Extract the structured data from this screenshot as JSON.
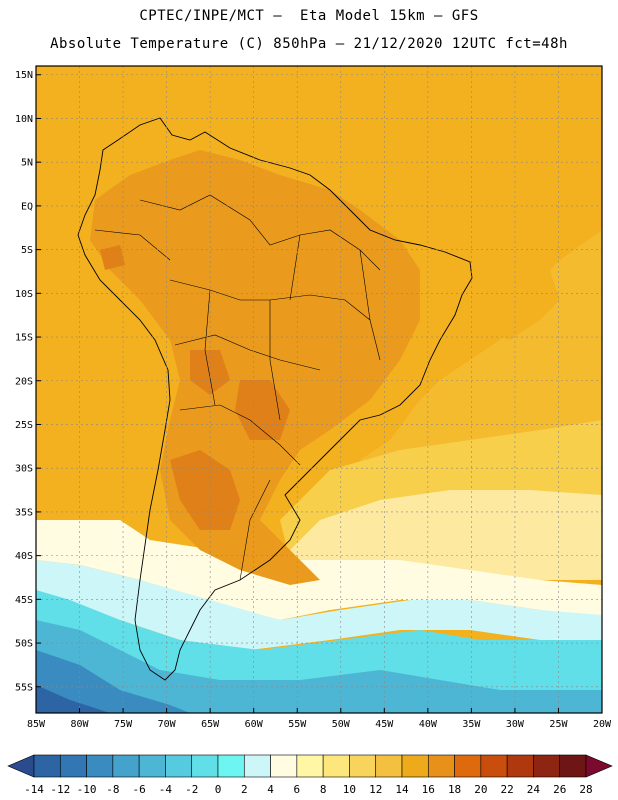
{
  "title_line1": "CPTEC/INPE/MCT –  Eta Model 15km – GFS",
  "title_line2": "Absolute Temperature (C) 850hPa – 21/12/2020 12UTC fct=48h",
  "lat_labels": [
    "15N",
    "10N",
    "5N",
    "EQ",
    "5S",
    "10S",
    "15S",
    "20S",
    "25S",
    "30S",
    "35S",
    "40S",
    "45S",
    "50S",
    "55S"
  ],
  "lon_labels": [
    "85W",
    "80W",
    "75W",
    "70W",
    "65W",
    "60W",
    "55W",
    "50W",
    "45W",
    "40W",
    "35W",
    "30W",
    "25W",
    "20W"
  ],
  "colorbar": {
    "labels": [
      "-14",
      "-12",
      "-10",
      "-8",
      "-6",
      "-4",
      "-2",
      "0",
      "2",
      "4",
      "6",
      "8",
      "10",
      "12",
      "14",
      "16",
      "18",
      "20",
      "22",
      "24",
      "26",
      "28"
    ],
    "colors": [
      "#2a4b8d",
      "#2d64a3",
      "#3277b3",
      "#3a8cc0",
      "#45a2cb",
      "#4db6d5",
      "#56cbe0",
      "#60dfe9",
      "#6df5f2",
      "#cdf6f8",
      "#fffce2",
      "#fff7a5",
      "#fde77d",
      "#f8d45c",
      "#f3c13f",
      "#edab1c",
      "#e7901a",
      "#df6a0e",
      "#c94d0c",
      "#b0380e",
      "#8e2512",
      "#6d1615",
      "#7b0a2e"
    ]
  },
  "map": {
    "lon_range": [
      -85,
      -20
    ],
    "lat_range": [
      -58,
      16
    ],
    "field_colors": {
      "warm": "#f4b11f",
      "hot": "#ea9a1c",
      "hottest": "#e08018",
      "mild": "#f7cf4b",
      "cool": "#fdeaa0",
      "cold": "#fffce2",
      "chill": "#cdf6f8",
      "icy": "#60dfe9",
      "cyan": "#4db6d5",
      "blue": "#3a8cc0",
      "deep": "#2d64a3"
    }
  }
}
